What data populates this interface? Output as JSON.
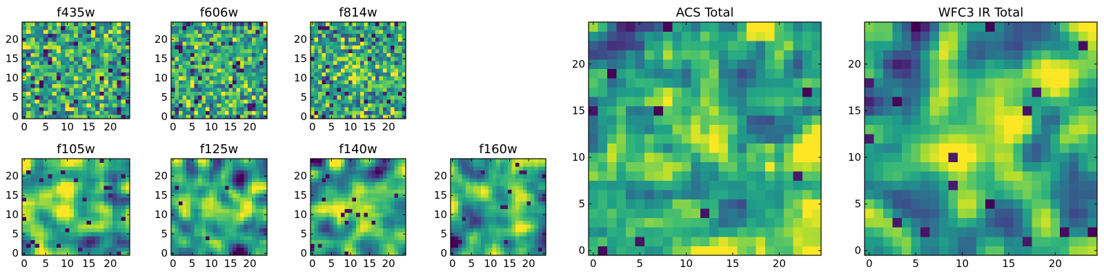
{
  "colormap": "viridis",
  "colors": {
    "axis_frame": "#000000",
    "background": "#ffffff"
  },
  "chart_data": [
    {
      "type": "heatmap",
      "title": "f435w",
      "grid": false,
      "colormap": "viridis",
      "x_range": [
        -0.5,
        24.5
      ],
      "y_range": [
        -0.5,
        24.5
      ],
      "x_ticks": [
        0,
        5,
        10,
        15,
        20
      ],
      "y_ticks": [
        0,
        5,
        10,
        15,
        20
      ],
      "x_tick_labels": [
        "0",
        "5",
        "10",
        "15",
        "20"
      ],
      "y_tick_labels": [
        "0",
        "5",
        "10",
        "15",
        "20"
      ],
      "grid_size": [
        25,
        25
      ],
      "value_scale": "normalized 0-1 (no colorbar shown)",
      "value_stats": {
        "mean": 0.6,
        "spread": 0.3,
        "smoothness": 0.0,
        "dark_pixel_fraction": 0.03
      },
      "central_bright_peak": 0.05,
      "seed": 11
    },
    {
      "type": "heatmap",
      "title": "f606w",
      "grid": false,
      "colormap": "viridis",
      "x_range": [
        -0.5,
        24.5
      ],
      "y_range": [
        -0.5,
        24.5
      ],
      "x_ticks": [
        0,
        5,
        10,
        15,
        20
      ],
      "y_ticks": [
        0,
        5,
        10,
        15,
        20
      ],
      "x_tick_labels": [
        "0",
        "5",
        "10",
        "15",
        "20"
      ],
      "y_tick_labels": [
        "0",
        "5",
        "10",
        "15",
        "20"
      ],
      "grid_size": [
        25,
        25
      ],
      "value_scale": "normalized 0-1 (no colorbar shown)",
      "value_stats": {
        "mean": 0.6,
        "spread": 0.3,
        "smoothness": 0.1,
        "dark_pixel_fraction": 0.03
      },
      "central_bright_peak": 0.08,
      "seed": 23
    },
    {
      "type": "heatmap",
      "title": "f814w",
      "grid": false,
      "colormap": "viridis",
      "x_range": [
        -0.5,
        24.5
      ],
      "y_range": [
        -0.5,
        24.5
      ],
      "x_ticks": [
        0,
        5,
        10,
        15,
        20
      ],
      "y_ticks": [
        0,
        5,
        10,
        15,
        20
      ],
      "x_tick_labels": [
        "0",
        "5",
        "10",
        "15",
        "20"
      ],
      "y_tick_labels": [
        "0",
        "5",
        "10",
        "15",
        "20"
      ],
      "grid_size": [
        25,
        25
      ],
      "value_scale": "normalized 0-1 (no colorbar shown)",
      "value_stats": {
        "mean": 0.6,
        "spread": 0.3,
        "smoothness": 0.1,
        "dark_pixel_fraction": 0.035
      },
      "central_bright_peak": 0.12,
      "seed": 37
    },
    {
      "type": "heatmap",
      "title": "f105w",
      "grid": false,
      "colormap": "viridis",
      "x_range": [
        -0.5,
        24.5
      ],
      "y_range": [
        -0.5,
        24.5
      ],
      "x_ticks": [
        0,
        5,
        10,
        15,
        20
      ],
      "y_ticks": [
        0,
        5,
        10,
        15,
        20
      ],
      "x_tick_labels": [
        "0",
        "5",
        "10",
        "15",
        "20"
      ],
      "y_tick_labels": [
        "0",
        "5",
        "10",
        "15",
        "20"
      ],
      "grid_size": [
        25,
        25
      ],
      "value_scale": "normalized 0-1 (no colorbar shown)",
      "value_stats": {
        "mean": 0.62,
        "spread": 0.28,
        "smoothness": 0.5,
        "dark_pixel_fraction": 0.03
      },
      "central_bright_peak": 0.3,
      "seed": 41
    },
    {
      "type": "heatmap",
      "title": "f125w",
      "grid": false,
      "colormap": "viridis",
      "x_range": [
        -0.5,
        24.5
      ],
      "y_range": [
        -0.5,
        24.5
      ],
      "x_ticks": [
        0,
        5,
        10,
        15,
        20
      ],
      "y_ticks": [
        0,
        5,
        10,
        15,
        20
      ],
      "x_tick_labels": [
        "0",
        "5",
        "10",
        "15",
        "20"
      ],
      "y_tick_labels": [
        "0",
        "5",
        "10",
        "15",
        "20"
      ],
      "grid_size": [
        25,
        25
      ],
      "value_scale": "normalized 0-1 (no colorbar shown)",
      "value_stats": {
        "mean": 0.58,
        "spread": 0.28,
        "smoothness": 0.5,
        "dark_pixel_fraction": 0.02
      },
      "central_bright_peak": 0.15,
      "seed": 53
    },
    {
      "type": "heatmap",
      "title": "f140w",
      "grid": false,
      "colormap": "viridis",
      "x_range": [
        -0.5,
        24.5
      ],
      "y_range": [
        -0.5,
        24.5
      ],
      "x_ticks": [
        0,
        5,
        10,
        15,
        20
      ],
      "y_ticks": [
        0,
        5,
        10,
        15,
        20
      ],
      "x_tick_labels": [
        "0",
        "5",
        "10",
        "15",
        "20"
      ],
      "y_tick_labels": [
        "0",
        "5",
        "10",
        "15",
        "20"
      ],
      "grid_size": [
        25,
        25
      ],
      "value_scale": "normalized 0-1 (no colorbar shown)",
      "value_stats": {
        "mean": 0.6,
        "spread": 0.28,
        "smoothness": 0.5,
        "dark_pixel_fraction": 0.025
      },
      "central_bright_peak": 0.2,
      "seed": 67
    },
    {
      "type": "heatmap",
      "title": "f160w",
      "grid": false,
      "colormap": "viridis",
      "x_range": [
        -0.5,
        24.5
      ],
      "y_range": [
        -0.5,
        24.5
      ],
      "x_ticks": [
        0,
        5,
        10,
        15,
        20
      ],
      "y_ticks": [
        0,
        5,
        10,
        15,
        20
      ],
      "x_tick_labels": [
        "0",
        "5",
        "10",
        "15",
        "20"
      ],
      "y_tick_labels": [
        "0",
        "5",
        "10",
        "15",
        "20"
      ],
      "grid_size": [
        25,
        25
      ],
      "value_scale": "normalized 0-1 (no colorbar shown)",
      "value_stats": {
        "mean": 0.58,
        "spread": 0.28,
        "smoothness": 0.45,
        "dark_pixel_fraction": 0.03
      },
      "central_bright_peak": 0.2,
      "seed": 79
    },
    {
      "type": "heatmap",
      "title": "ACS Total",
      "grid": false,
      "colormap": "viridis",
      "x_range": [
        -0.5,
        24.5
      ],
      "y_range": [
        -0.5,
        24.5
      ],
      "x_ticks": [
        0,
        5,
        10,
        15,
        20
      ],
      "y_ticks": [
        0,
        5,
        10,
        15,
        20
      ],
      "x_tick_labels": [
        "0",
        "5",
        "10",
        "15",
        "20"
      ],
      "y_tick_labels": [
        "0",
        "5",
        "10",
        "15",
        "20"
      ],
      "grid_size": [
        25,
        25
      ],
      "value_scale": "normalized 0-1 (no colorbar shown)",
      "value_stats": {
        "mean": 0.62,
        "spread": 0.26,
        "smoothness": 0.2,
        "dark_pixel_fraction": 0.02
      },
      "central_bright_peak": 0.12,
      "seed": 97
    },
    {
      "type": "heatmap",
      "title": "WFC3 IR Total",
      "grid": false,
      "colormap": "viridis",
      "x_range": [
        -0.5,
        24.5
      ],
      "y_range": [
        -0.5,
        24.5
      ],
      "x_ticks": [
        0,
        5,
        10,
        15,
        20
      ],
      "y_ticks": [
        0,
        5,
        10,
        15,
        20
      ],
      "x_tick_labels": [
        "0",
        "5",
        "10",
        "15",
        "20"
      ],
      "y_tick_labels": [
        "0",
        "5",
        "10",
        "15",
        "20"
      ],
      "grid_size": [
        25,
        25
      ],
      "value_scale": "normalized 0-1 (no colorbar shown)",
      "value_stats": {
        "mean": 0.58,
        "spread": 0.28,
        "smoothness": 0.6,
        "dark_pixel_fraction": 0.02
      },
      "central_bright_peak": 0.35,
      "seed": 131
    }
  ]
}
